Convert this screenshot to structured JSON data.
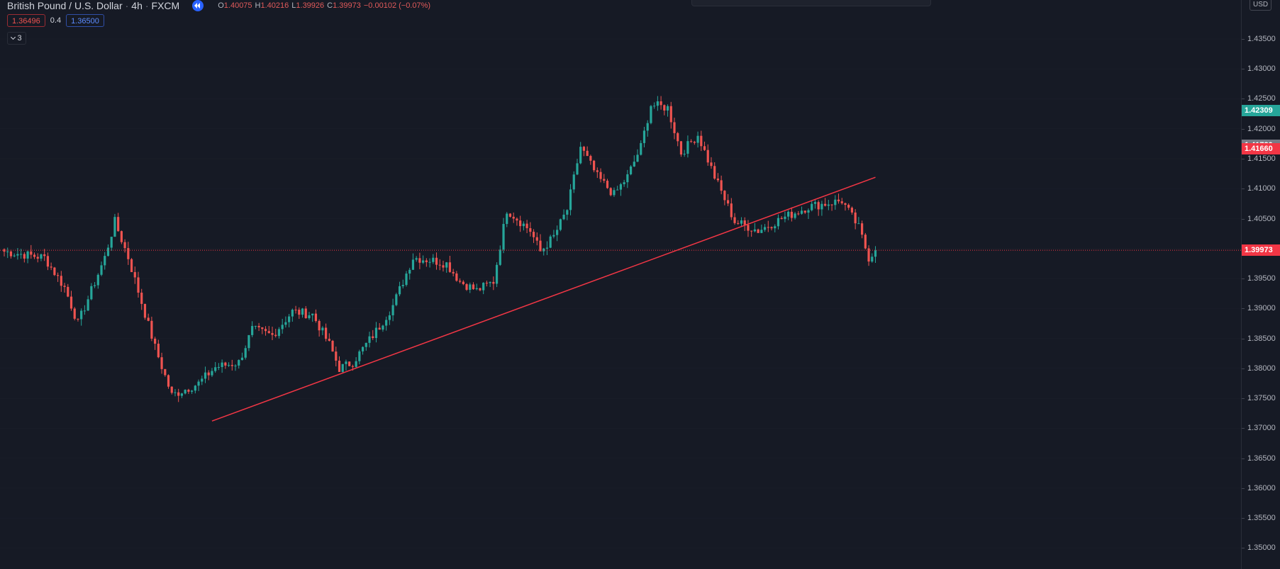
{
  "legend": {
    "symbol": "British Pound / U.S. Dollar",
    "interval": "4h",
    "exchange": "FXCM",
    "open_key": "O",
    "open": "1.40075",
    "high_key": "H",
    "high": "1.40216",
    "low_key": "L",
    "low": "1.39926",
    "close_key": "C",
    "close": "1.39973",
    "change": "−0.00102 (−0.07%)"
  },
  "pills": {
    "bid": "1.36496",
    "spread": "0.4",
    "ask": "1.36500"
  },
  "collapse": {
    "count": "3"
  },
  "currency": "USD",
  "colors": {
    "background": "#161a25",
    "up": "#26a69a",
    "down": "#ef5350",
    "trendline": "#f23645",
    "grid": "#2a2e39"
  },
  "price_tags": [
    {
      "label": "1.42309",
      "price": 1.42309,
      "color": "#26a69a"
    },
    {
      "label": "1.41730",
      "price": 1.4173,
      "color": "#787b86"
    },
    {
      "label": "1.41660",
      "price": 1.4166,
      "color": "#f23645"
    },
    {
      "label": "1.39973",
      "price": 1.39973,
      "color": "#f23645"
    }
  ],
  "chart_data": {
    "type": "candlestick",
    "title": "British Pound / U.S. Dollar · 4h · FXCM",
    "ylim": [
      1.3465,
      1.4415
    ],
    "y_ticks": [
      "1.35000",
      "1.35500",
      "1.36000",
      "1.36500",
      "1.37000",
      "1.37500",
      "1.38000",
      "1.38500",
      "1.39000",
      "1.39500",
      "1.40000",
      "1.40500",
      "1.41000",
      "1.41500",
      "1.42000",
      "1.42500",
      "1.43000",
      "1.43500"
    ],
    "current_price": 1.39973,
    "anchors": [
      [
        0,
        1.3995
      ],
      [
        12,
        1.3985
      ],
      [
        18,
        1.3935
      ],
      [
        22,
        1.3875
      ],
      [
        30,
        1.3985
      ],
      [
        33,
        1.4045
      ],
      [
        37,
        1.3985
      ],
      [
        45,
        1.3835
      ],
      [
        50,
        1.3755
      ],
      [
        58,
        1.3775
      ],
      [
        63,
        1.3802
      ],
      [
        70,
        1.381
      ],
      [
        74,
        1.3865
      ],
      [
        80,
        1.3855
      ],
      [
        86,
        1.3895
      ],
      [
        92,
        1.389
      ],
      [
        97,
        1.384
      ],
      [
        100,
        1.38
      ],
      [
        104,
        1.381
      ],
      [
        112,
        1.387
      ],
      [
        116,
        1.3905
      ],
      [
        122,
        1.3985
      ],
      [
        128,
        1.398
      ],
      [
        132,
        1.3975
      ],
      [
        136,
        1.3945
      ],
      [
        141,
        1.393
      ],
      [
        146,
        1.3945
      ],
      [
        150,
        1.4065
      ],
      [
        157,
        1.403
      ],
      [
        160,
        1.3995
      ],
      [
        164,
        1.402
      ],
      [
        168,
        1.4065
      ],
      [
        172,
        1.417
      ],
      [
        177,
        1.412
      ],
      [
        182,
        1.409
      ],
      [
        186,
        1.412
      ],
      [
        190,
        1.417
      ],
      [
        193,
        1.424
      ],
      [
        198,
        1.4235
      ],
      [
        202,
        1.416
      ],
      [
        207,
        1.419
      ],
      [
        212,
        1.412
      ],
      [
        218,
        1.4045
      ],
      [
        225,
        1.403
      ],
      [
        232,
        1.405
      ],
      [
        240,
        1.407
      ],
      [
        245,
        1.4075
      ],
      [
        250,
        1.408
      ],
      [
        255,
        1.4035
      ],
      [
        258,
        1.3985
      ],
      [
        260,
        1.3997
      ]
    ],
    "trendline": {
      "start": [
        62,
        1.3712
      ],
      "end": [
        260,
        1.4119
      ]
    }
  }
}
